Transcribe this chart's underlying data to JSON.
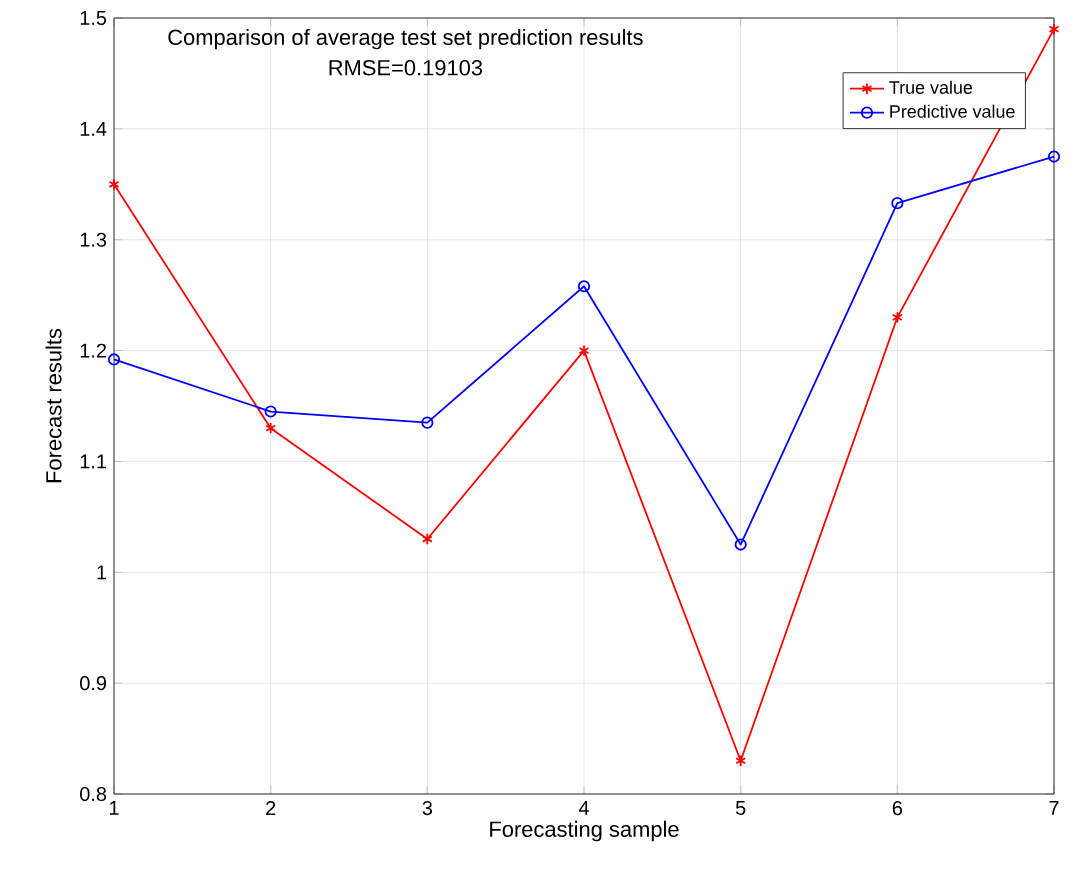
{
  "chart_data": {
    "type": "line",
    "title": "Comparison of average test set prediction results",
    "subtitle": "RMSE=0.19103",
    "xlabel": "Forecasting sample",
    "ylabel": "Forecast results",
    "x": [
      1,
      2,
      3,
      4,
      5,
      6,
      7
    ],
    "series": [
      {
        "name": "True value",
        "color": "#ff0000",
        "marker": "cross",
        "values": [
          1.35,
          1.13,
          1.03,
          1.2,
          0.83,
          1.23,
          1.49
        ]
      },
      {
        "name": "Predictive value",
        "color": "#0000ff",
        "marker": "circle",
        "values": [
          1.192,
          1.145,
          1.135,
          1.258,
          1.025,
          1.333,
          1.375
        ]
      }
    ],
    "xlim": [
      1,
      7
    ],
    "xticks": [
      1,
      2,
      3,
      4,
      5,
      6,
      7
    ],
    "ylim": [
      0.8,
      1.5
    ],
    "yticks": [
      0.8,
      0.9,
      1,
      1.1,
      1.2,
      1.3,
      1.4,
      1.5
    ],
    "grid": true,
    "legend": "top right",
    "line_style": "solid"
  }
}
